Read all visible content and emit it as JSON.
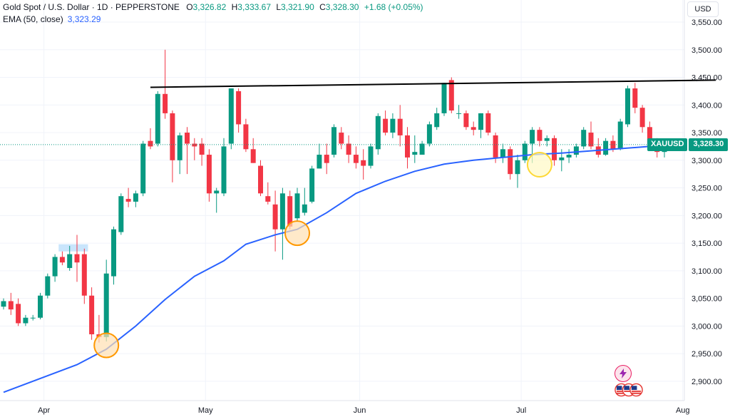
{
  "header": {
    "symbol_title": "Gold Spot / U.S. Dollar · 1D · PEPPERSTONE",
    "o_label": "O",
    "o_value": "3,326.82",
    "h_label": "H",
    "h_value": "3,333.67",
    "l_label": "L",
    "l_value": "3,321.90",
    "c_label": "C",
    "c_value": "3,328.30",
    "change": "+1.68 (+0.05%)",
    "ema_label": "EMA (50, close)",
    "ema_value": "3,323.29"
  },
  "currency_button": "USD",
  "price_tag": {
    "symbol": "XAUUSD",
    "price": "3,328.30"
  },
  "colors": {
    "up": "#089981",
    "down": "#f23645",
    "ema": "#2962ff",
    "resistance": "#000000"
  },
  "icons": [
    "lightning-icon",
    "us-flag-events-icon"
  ],
  "chart_data": {
    "type": "candlestick",
    "y_ticks": [
      "3,550.00",
      "3,500.00",
      "3,450.00",
      "3,400.00",
      "3,350.00",
      "3,300.00",
      "3,250.00",
      "3,200.00",
      "3,150.00",
      "3,100.00",
      "3,050.00",
      "3,000.00",
      "2,950.00",
      "2,900.00"
    ],
    "y_tick_values": [
      3550,
      3500,
      3450,
      3400,
      3350,
      3300,
      3250,
      3200,
      3150,
      3100,
      3050,
      3000,
      2950,
      2900
    ],
    "ylim": [
      2865,
      3590
    ],
    "x_labels": [
      "Apr",
      "May",
      "Jun",
      "Jul",
      "Aug"
    ],
    "x_label_index": [
      5.5,
      27.5,
      48.5,
      70.5,
      92.5
    ],
    "last_price": 3328.3,
    "candles": [
      [
        3035,
        3050,
        3030,
        3045
      ],
      [
        3045,
        3060,
        3020,
        3030
      ],
      [
        3040,
        3050,
        3000,
        3005
      ],
      [
        3005,
        3020,
        3000,
        3015
      ],
      [
        3015,
        3020,
        3010,
        3015
      ],
      [
        3015,
        3060,
        3012,
        3055
      ],
      [
        3055,
        3095,
        3050,
        3090
      ],
      [
        3090,
        3130,
        3080,
        3125
      ],
      [
        3125,
        3135,
        3110,
        3115
      ],
      [
        3105,
        3145,
        3100,
        3130
      ],
      [
        3130,
        3165,
        3080,
        3115
      ],
      [
        3130,
        3140,
        3040,
        3055
      ],
      [
        3055,
        3070,
        2975,
        2985
      ],
      [
        2985,
        3020,
        2970,
        2980
      ],
      [
        2980,
        3120,
        2972,
        3095
      ],
      [
        3090,
        3180,
        3075,
        3175
      ],
      [
        3170,
        3240,
        3165,
        3235
      ],
      [
        3230,
        3250,
        3215,
        3225
      ],
      [
        3225,
        3245,
        3215,
        3240
      ],
      [
        3240,
        3335,
        3235,
        3330
      ],
      [
        3335,
        3358,
        3320,
        3325
      ],
      [
        3330,
        3425,
        3325,
        3420
      ],
      [
        3420,
        3500,
        3375,
        3385
      ],
      [
        3385,
        3390,
        3260,
        3300
      ],
      [
        3300,
        3350,
        3275,
        3345
      ],
      [
        3350,
        3360,
        3275,
        3330
      ],
      [
        3330,
        3340,
        3300,
        3325
      ],
      [
        3330,
        3340,
        3290,
        3310
      ],
      [
        3310,
        3320,
        3225,
        3240
      ],
      [
        3240,
        3250,
        3205,
        3245
      ],
      [
        3240,
        3340,
        3235,
        3325
      ],
      [
        3330,
        3430,
        3320,
        3430
      ],
      [
        3425,
        3430,
        3350,
        3365
      ],
      [
        3365,
        3375,
        3315,
        3320
      ],
      [
        3320,
        3340,
        3295,
        3295
      ],
      [
        3290,
        3300,
        3235,
        3240
      ],
      [
        3235,
        3260,
        3220,
        3225
      ],
      [
        3220,
        3245,
        3135,
        3175
      ],
      [
        3175,
        3250,
        3120,
        3240
      ],
      [
        3235,
        3245,
        3175,
        3180
      ],
      [
        3195,
        3250,
        3190,
        3240
      ],
      [
        3205,
        3250,
        3200,
        3220
      ],
      [
        3225,
        3290,
        3222,
        3285
      ],
      [
        3285,
        3330,
        3285,
        3310
      ],
      [
        3310,
        3330,
        3275,
        3295
      ],
      [
        3310,
        3365,
        3305,
        3360
      ],
      [
        3350,
        3360,
        3320,
        3330
      ],
      [
        3330,
        3345,
        3295,
        3310
      ],
      [
        3310,
        3325,
        3285,
        3295
      ],
      [
        3300,
        3320,
        3265,
        3290
      ],
      [
        3290,
        3330,
        3285,
        3325
      ],
      [
        3320,
        3385,
        3310,
        3380
      ],
      [
        3375,
        3390,
        3345,
        3350
      ],
      [
        3350,
        3385,
        3340,
        3375
      ],
      [
        3375,
        3400,
        3325,
        3345
      ],
      [
        3345,
        3360,
        3285,
        3305
      ],
      [
        3310,
        3345,
        3295,
        3315
      ],
      [
        3310,
        3335,
        3310,
        3330
      ],
      [
        3330,
        3370,
        3325,
        3365
      ],
      [
        3360,
        3395,
        3355,
        3385
      ],
      [
        3385,
        3440,
        3380,
        3440
      ],
      [
        3445,
        3450,
        3385,
        3390
      ],
      [
        3385,
        3400,
        3375,
        3385
      ],
      [
        3385,
        3390,
        3355,
        3360
      ],
      [
        3360,
        3370,
        3345,
        3355
      ],
      [
        3355,
        3385,
        3340,
        3385
      ],
      [
        3385,
        3390,
        3345,
        3350
      ],
      [
        3345,
        3350,
        3295,
        3305
      ],
      [
        3305,
        3330,
        3295,
        3320
      ],
      [
        3320,
        3325,
        3265,
        3275
      ],
      [
        3275,
        3310,
        3250,
        3300
      ],
      [
        3300,
        3335,
        3295,
        3330
      ],
      [
        3330,
        3360,
        3295,
        3355
      ],
      [
        3355,
        3360,
        3325,
        3335
      ],
      [
        3335,
        3345,
        3325,
        3340
      ],
      [
        3340,
        3345,
        3290,
        3300
      ],
      [
        3300,
        3320,
        3280,
        3305
      ],
      [
        3305,
        3320,
        3295,
        3310
      ],
      [
        3310,
        3330,
        3305,
        3325
      ],
      [
        3325,
        3360,
        3320,
        3355
      ],
      [
        3350,
        3370,
        3320,
        3325
      ],
      [
        3325,
        3340,
        3305,
        3310
      ],
      [
        3310,
        3340,
        3308,
        3335
      ],
      [
        3335,
        3345,
        3315,
        3320
      ],
      [
        3320,
        3375,
        3318,
        3370
      ],
      [
        3365,
        3435,
        3360,
        3430
      ],
      [
        3430,
        3440,
        3385,
        3395
      ],
      [
        3395,
        3400,
        3350,
        3360
      ],
      [
        3360,
        3370,
        3320,
        3325
      ],
      [
        3325,
        3340,
        3305,
        3315
      ],
      [
        3315,
        3330,
        3305,
        3325
      ],
      [
        3326.82,
        3333.67,
        3321.9,
        3328.3
      ]
    ],
    "ema": [
      [
        0,
        2880
      ],
      [
        10,
        2930
      ],
      [
        14,
        2958
      ],
      [
        18,
        3000
      ],
      [
        22,
        3048
      ],
      [
        26,
        3090
      ],
      [
        30,
        3118
      ],
      [
        33,
        3148
      ],
      [
        37,
        3165
      ],
      [
        40,
        3175
      ],
      [
        44,
        3205
      ],
      [
        48,
        3240
      ],
      [
        52,
        3262
      ],
      [
        56,
        3280
      ],
      [
        60,
        3293
      ],
      [
        64,
        3300
      ],
      [
        68,
        3305
      ],
      [
        72,
        3310
      ],
      [
        76,
        3313
      ],
      [
        80,
        3317
      ],
      [
        84,
        3321
      ],
      [
        88,
        3325
      ],
      [
        92,
        3323.29
      ]
    ],
    "resistance_line": [
      [
        20,
        3432
      ],
      [
        97,
        3445
      ]
    ],
    "circles": [
      {
        "index": 14,
        "price": 2965,
        "fill": "#ffe0b2",
        "stroke": "#ff9800"
      },
      {
        "index": 40,
        "price": 3168,
        "fill": "#ffe0b2",
        "stroke": "#ff9800"
      },
      {
        "index": 73,
        "price": 3292,
        "fill": "#fff9c4",
        "stroke": "#fdd835"
      }
    ],
    "highlight_box": {
      "i0": 8,
      "i1": 12,
      "p0": 3135,
      "p1": 3148,
      "fill": "#bbdefb"
    }
  }
}
